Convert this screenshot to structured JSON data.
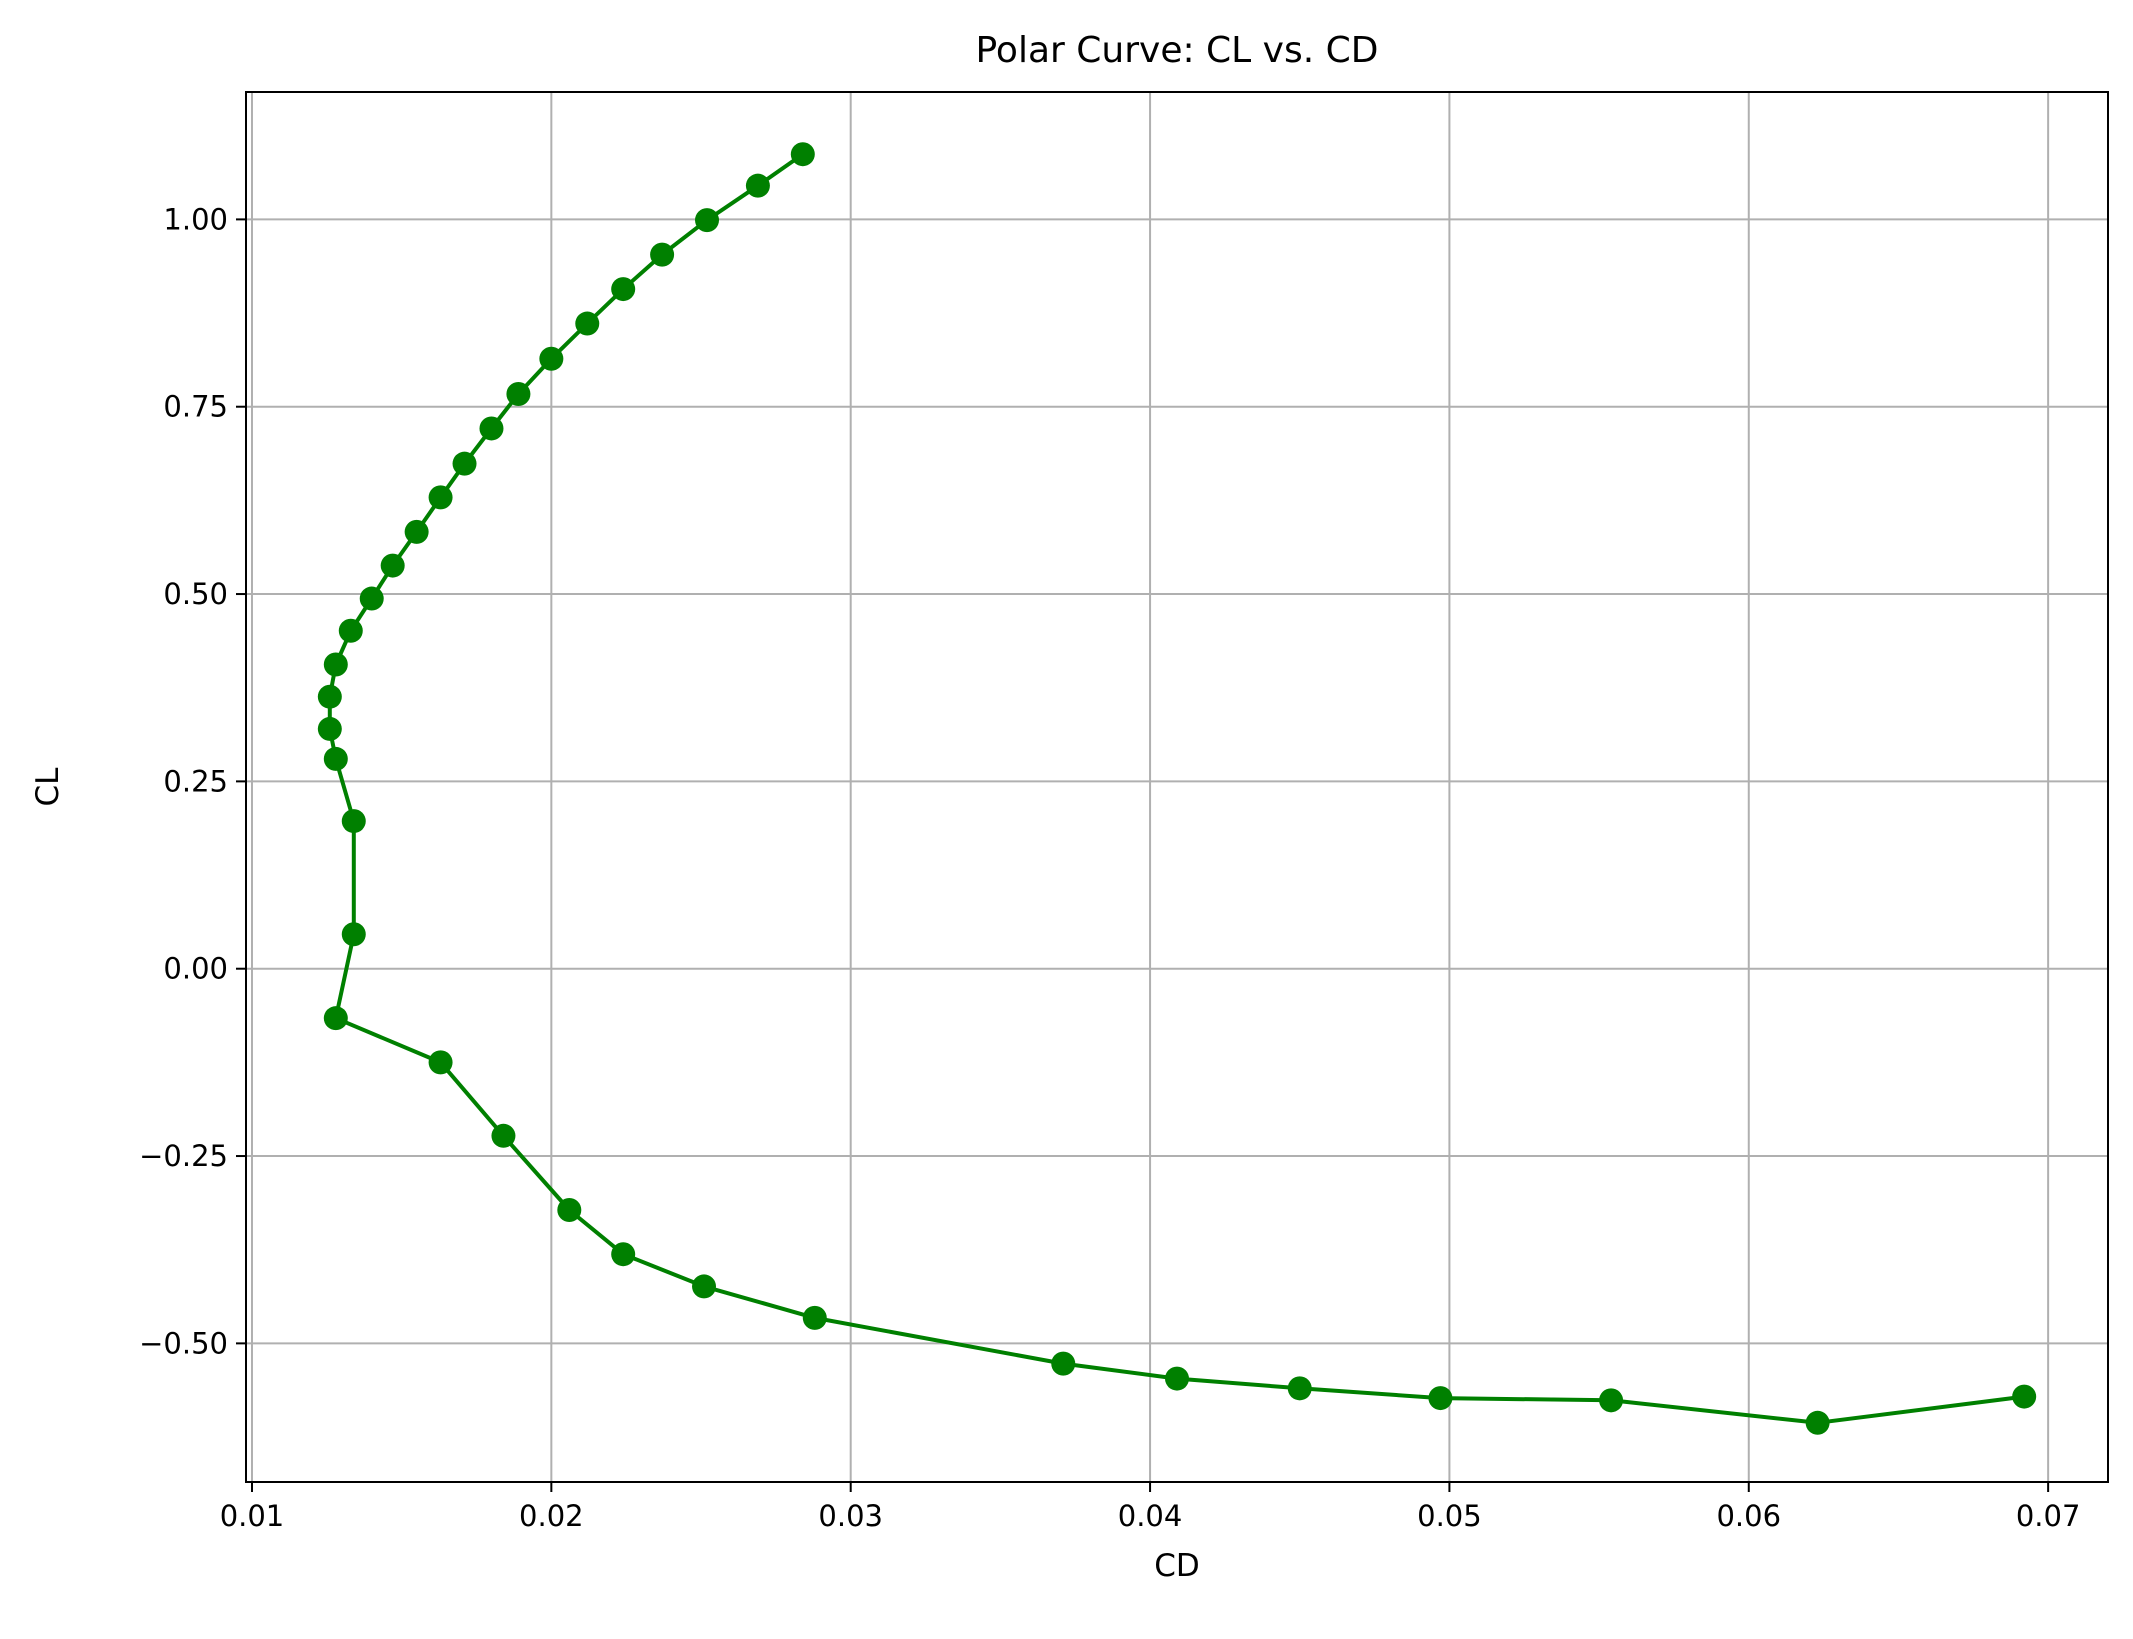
{
  "chart_data": {
    "type": "line",
    "title": "Polar Curve: CL vs. CD",
    "xlabel": "CD",
    "ylabel": "CL",
    "xlim": [
      0.0098,
      0.072
    ],
    "ylim": [
      -0.685,
      1.17
    ],
    "xticks": [
      0.01,
      0.02,
      0.03,
      0.04,
      0.05,
      0.06,
      0.07
    ],
    "xtick_labels": [
      "0.01",
      "0.02",
      "0.03",
      "0.04",
      "0.05",
      "0.06",
      "0.07"
    ],
    "yticks": [
      -0.5,
      -0.25,
      0.0,
      0.25,
      0.5,
      0.75,
      1.0
    ],
    "ytick_labels": [
      "−0.50",
      "−0.25",
      "0.00",
      "0.25",
      "0.50",
      "0.75",
      "1.00"
    ],
    "grid": true,
    "legend": "none",
    "series": [
      {
        "color": "#008000",
        "marker": "circle",
        "x": [
          0.0692,
          0.0623,
          0.0554,
          0.0497,
          0.045,
          0.0409,
          0.0371,
          0.0288,
          0.0251,
          0.0224,
          0.0206,
          0.0184,
          0.0163,
          0.0128,
          0.0134,
          0.0134,
          0.0128,
          0.0126,
          0.0126,
          0.0128,
          0.0133,
          0.014,
          0.0147,
          0.0155,
          0.0163,
          0.0171,
          0.018,
          0.0189,
          0.02,
          0.0212,
          0.0224,
          0.0237,
          0.0252,
          0.0269,
          0.0284
        ],
        "y": [
          -0.571,
          -0.606,
          -0.576,
          -0.573,
          -0.56,
          -0.547,
          -0.527,
          -0.466,
          -0.424,
          -0.381,
          -0.322,
          -0.223,
          -0.125,
          -0.066,
          0.046,
          0.197,
          0.28,
          0.32,
          0.363,
          0.406,
          0.451,
          0.494,
          0.538,
          0.583,
          0.629,
          0.674,
          0.721,
          0.767,
          0.814,
          0.861,
          0.907,
          0.953,
          0.999,
          1.045,
          1.087
        ]
      }
    ]
  }
}
